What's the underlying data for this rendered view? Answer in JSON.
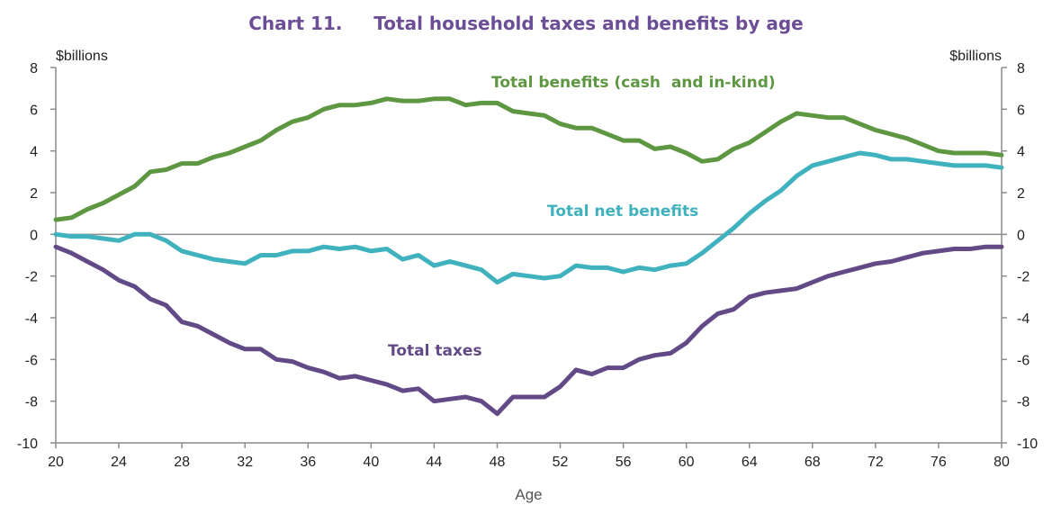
{
  "chart_data": {
    "type": "line",
    "title": "Chart 11.     Total household taxes and benefits by age",
    "xlabel": "Age",
    "ylabel_left": "$billions",
    "ylabel_right": "$billions",
    "xlim": [
      20,
      80
    ],
    "ylim": [
      -10,
      8
    ],
    "x_ticks": [
      20,
      24,
      28,
      32,
      36,
      40,
      44,
      48,
      52,
      56,
      60,
      64,
      68,
      72,
      76,
      80
    ],
    "y_ticks": [
      8,
      6,
      4,
      2,
      0,
      -2,
      -4,
      -6,
      -8,
      -10
    ],
    "grid": false,
    "x": [
      20,
      21,
      22,
      23,
      24,
      25,
      26,
      27,
      28,
      29,
      30,
      31,
      32,
      33,
      34,
      35,
      36,
      37,
      38,
      39,
      40,
      41,
      42,
      43,
      44,
      45,
      46,
      47,
      48,
      49,
      50,
      51,
      52,
      53,
      54,
      55,
      56,
      57,
      58,
      59,
      60,
      61,
      62,
      63,
      64,
      65,
      66,
      67,
      68,
      69,
      70,
      71,
      72,
      73,
      74,
      75,
      76,
      77,
      78,
      79,
      80
    ],
    "series": [
      {
        "name": "Total benefits (cash  and in-kind)",
        "color": "#5e9741",
        "values": [
          0.7,
          0.8,
          1.2,
          1.5,
          1.9,
          2.3,
          3.0,
          3.1,
          3.4,
          3.4,
          3.7,
          3.9,
          4.2,
          4.5,
          5.0,
          5.4,
          5.6,
          6.0,
          6.2,
          6.2,
          6.3,
          6.5,
          6.4,
          6.4,
          6.5,
          6.5,
          6.2,
          6.3,
          6.3,
          5.9,
          5.8,
          5.7,
          5.3,
          5.1,
          5.1,
          4.8,
          4.5,
          4.5,
          4.1,
          4.2,
          3.9,
          3.5,
          3.6,
          4.1,
          4.4,
          4.9,
          5.4,
          5.8,
          5.7,
          5.6,
          5.6,
          5.3,
          5.0,
          4.8,
          4.6,
          4.3,
          4.0,
          3.9,
          3.9,
          3.9,
          3.8
        ]
      },
      {
        "name": "Total net benefits",
        "color": "#3fb2be",
        "values": [
          0.0,
          -0.1,
          -0.1,
          -0.2,
          -0.3,
          0.0,
          0.0,
          -0.3,
          -0.8,
          -1.0,
          -1.2,
          -1.3,
          -1.4,
          -1.0,
          -1.0,
          -0.8,
          -0.8,
          -0.6,
          -0.7,
          -0.6,
          -0.8,
          -0.7,
          -1.2,
          -1.0,
          -1.5,
          -1.3,
          -1.5,
          -1.7,
          -2.3,
          -1.9,
          -2.0,
          -2.1,
          -2.0,
          -1.5,
          -1.6,
          -1.6,
          -1.8,
          -1.6,
          -1.7,
          -1.5,
          -1.4,
          -0.9,
          -0.3,
          0.3,
          1.0,
          1.6,
          2.1,
          2.8,
          3.3,
          3.5,
          3.7,
          3.9,
          3.8,
          3.6,
          3.6,
          3.5,
          3.4,
          3.3,
          3.3,
          3.3,
          3.2
        ]
      },
      {
        "name": "Total taxes",
        "color": "#624a87",
        "values": [
          -0.6,
          -0.9,
          -1.3,
          -1.7,
          -2.2,
          -2.5,
          -3.1,
          -3.4,
          -4.2,
          -4.4,
          -4.8,
          -5.2,
          -5.5,
          -5.5,
          -6.0,
          -6.1,
          -6.4,
          -6.6,
          -6.9,
          -6.8,
          -7.0,
          -7.2,
          -7.5,
          -7.4,
          -8.0,
          -7.9,
          -7.8,
          -8.0,
          -8.6,
          -7.8,
          -7.8,
          -7.8,
          -7.3,
          -6.5,
          -6.7,
          -6.4,
          -6.4,
          -6.0,
          -5.8,
          -5.7,
          -5.2,
          -4.4,
          -3.8,
          -3.6,
          -3.0,
          -2.8,
          -2.7,
          -2.6,
          -2.3,
          -2.0,
          -1.8,
          -1.6,
          -1.4,
          -1.3,
          -1.1,
          -0.9,
          -0.8,
          -0.7,
          -0.7,
          -0.6,
          -0.6
        ]
      }
    ]
  }
}
